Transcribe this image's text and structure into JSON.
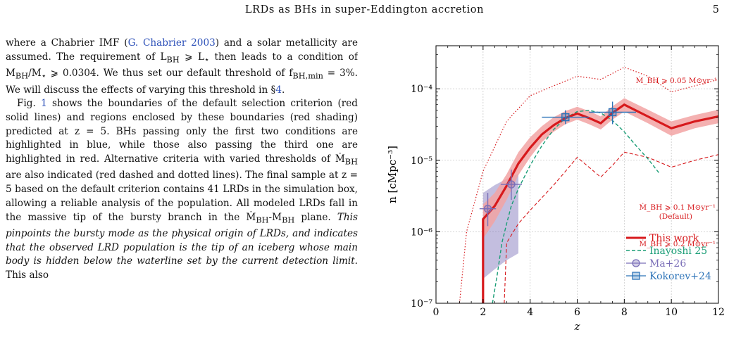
{
  "header": {
    "running_head": "LRDs as BHs in super-Eddington accretion",
    "page_number": "5"
  },
  "body": {
    "p1": {
      "t1": "where a Chabrier IMF (",
      "ref1": "G. Chabrier 2003",
      "t2": ") and a solar metallicity are assumed. The requirement of L",
      "sub1": "BH",
      "t3": " ⩾ L",
      "sub2": "⋆",
      "t4": " then leads to a condition of M",
      "sub3": "BH",
      "t5": "/M",
      "sub4": "⋆",
      "t6": " ⩾ 0.0304. We thus set our default threshold of f",
      "sub5": "BH,min",
      "t7": " = 3%. We will discuss the effects of varying this threshold in §",
      "ref2": "4",
      "t8": "."
    },
    "p2": {
      "t1": "Fig. ",
      "ref1": "1",
      "t2": " shows the boundaries of the default selection criterion (red solid lines) and regions enclosed by these boundaries (red shading) predicted at z = 5. BHs passing only the first two conditions are highlighted in blue, while those also passing the third one are highlighted in red. Alternative criteria with varied thresholds of Ṁ",
      "sub1": "BH",
      "t3": " are also indicated (red dashed and dotted lines). The final sample at z = 5 based on the default criterion contains 41 LRDs in the simulation box, allowing a reliable analysis of the population. All modeled LRDs fall in the massive tip of the bursty branch in the Ṁ",
      "sub2": "BH",
      "t4": "-M",
      "sub3": "BH",
      "t5": " plane. ",
      "ital": "This pinpoints the bursty mode as the physical origin of LRDs, and indicates that the observed LRD population is the tip of an iceberg whose main body is hidden below the waterline set by the current detection limit.",
      "t6": " This also"
    }
  },
  "figure": {
    "ylabel": "n [cMpc⁻³]",
    "xlabel": "z",
    "annotations": [
      "Ṁ_BH ⩾ 0.05 M⊙yr⁻¹",
      "Ṁ_BH ⩾ 0.1 M⊙yr⁻¹",
      "(Default)",
      "Ṁ_BH ⩾ 0.2 M⊙yr⁻¹"
    ],
    "legend": [
      "This work",
      "Inayoshi 25",
      "Ma+26",
      "Kokorev+24"
    ]
  },
  "chart_data": {
    "type": "line",
    "xlabel": "z",
    "ylabel": "n [cMpc⁻³]",
    "xlim": [
      0,
      12
    ],
    "ylim": [
      1e-07,
      0.0004
    ],
    "yscale": "log",
    "grid": true,
    "legend_placement": "bottom-right",
    "x_ticks": [
      0,
      2,
      4,
      6,
      8,
      10,
      12
    ],
    "y_ticks": [
      "10⁻⁷",
      "10⁻⁶",
      "10⁻⁵",
      "10⁻⁴"
    ],
    "colors": {
      "red": "#d7191c",
      "shade": "#f2a3a3",
      "teal": "#1b9e77",
      "purple": "#7b6fb8",
      "blue": "#2c73b8"
    },
    "series": [
      {
        "name": "This work",
        "x": [
          2.0,
          2.5,
          3.0,
          3.5,
          4.0,
          4.5,
          5.0,
          5.5,
          6.0,
          6.5,
          7.0,
          7.5,
          8.0,
          9.0,
          10.0,
          11.0,
          12.0
        ],
        "y": [
          1.5e-06,
          2.3e-06,
          4.4e-06,
          9e-06,
          1.5e-05,
          2.3e-05,
          3.1e-05,
          3.9e-05,
          4.5e-05,
          3.9e-05,
          3.3e-05,
          4.6e-05,
          6e-05,
          4.1e-05,
          2.8e-05,
          3.5e-05,
          4.1e-05
        ],
        "y_low": [
          8e-07,
          1.4e-06,
          2.8e-06,
          6.2e-06,
          1.1e-05,
          1.8e-05,
          2.5e-05,
          3.2e-05,
          3.7e-05,
          3.2e-05,
          2.7e-05,
          3.7e-05,
          4.8e-05,
          3.3e-05,
          2.2e-05,
          2.8e-05,
          3.3e-05
        ],
        "y_high": [
          2.4e-06,
          3.5e-06,
          6.4e-06,
          1.3e-05,
          2.1e-05,
          3e-05,
          4e-05,
          4.9e-05,
          5.6e-05,
          4.9e-05,
          4.1e-05,
          5.7e-05,
          7.4e-05,
          5.1e-05,
          3.5e-05,
          4.3e-05,
          5.1e-05
        ]
      },
      {
        "name": "Ṁ_BH ⩾ 0.05 M⊙yr⁻¹",
        "x": [
          1.0,
          1.3,
          2.0,
          3.0,
          4.0,
          5.0,
          6.0,
          7.0,
          8.0,
          9.0,
          10.0,
          11.0,
          12.0
        ],
        "y": [
          1e-07,
          1e-06,
          7e-06,
          3.5e-05,
          8e-05,
          0.00011,
          0.00015,
          0.000135,
          0.0002,
          0.00015,
          9e-05,
          0.00011,
          0.000135
        ]
      },
      {
        "name": "Ṁ_BH ⩾ 0.2 M⊙yr⁻¹",
        "x": [
          2.9,
          3.0,
          3.5,
          4.0,
          4.5,
          5.0,
          5.5,
          6.0,
          6.5,
          7.0,
          7.5,
          8.0,
          9.0,
          10.0,
          11.0,
          12.0
        ],
        "y": [
          1e-07,
          7e-07,
          1.3e-06,
          2e-06,
          3e-06,
          4.5e-06,
          7e-06,
          1.1e-05,
          8e-06,
          5.8e-06,
          8.5e-06,
          1.3e-05,
          1.1e-05,
          8e-06,
          1e-05,
          1.2e-05
        ]
      },
      {
        "name": "Inayoshi 25",
        "x": [
          2.4,
          2.6,
          2.8,
          3.0,
          3.2,
          3.5,
          4.0,
          4.5,
          5.0,
          5.5,
          6.0,
          6.5,
          7.0,
          7.5,
          8.0,
          8.5,
          9.0,
          9.5
        ],
        "y": [
          1e-07,
          2.5e-07,
          7e-07,
          1.3e-06,
          2.3e-06,
          4e-06,
          8.5e-06,
          1.6e-05,
          2.7e-05,
          3.9e-05,
          4.8e-05,
          5e-05,
          4.6e-05,
          3.6e-05,
          2.5e-05,
          1.6e-05,
          1.05e-05,
          6.5e-06
        ]
      },
      {
        "name": "Ma+26",
        "x": [
          2.2,
          3.2
        ],
        "y": [
          2.1e-06,
          4.6e-06
        ],
        "x_err": [
          0.35,
          0.45
        ],
        "y_low": [
          1.2e-06,
          2.8e-06
        ],
        "y_high": [
          3.5e-06,
          7.4e-06
        ],
        "band_x": [
          2.0,
          2.5,
          3.0,
          3.5
        ],
        "band_low": [
          2.2e-07,
          3e-07,
          4e-07,
          5e-07
        ],
        "band_high": [
          3.5e-06,
          4.5e-06,
          5.5e-06,
          6.5e-06
        ]
      },
      {
        "name": "Kokorev+24",
        "x": [
          5.5,
          7.5
        ],
        "y": [
          4e-05,
          4.7e-05
        ],
        "x_err": [
          1.0,
          1.0
        ],
        "y_low": [
          3.2e-05,
          3.2e-05
        ],
        "y_high": [
          5e-05,
          6.6e-05
        ]
      }
    ]
  }
}
